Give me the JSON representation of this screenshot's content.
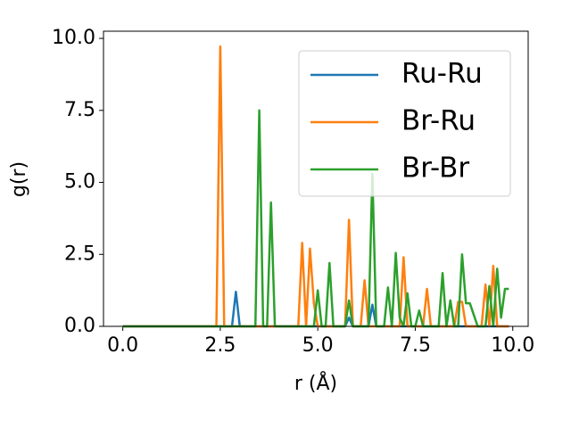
{
  "chart_data": {
    "type": "line",
    "xlabel": "r (Å)",
    "ylabel": "g(r)",
    "x": [
      0,
      0.1,
      0.2,
      0.3,
      0.4,
      0.5,
      0.6,
      0.7,
      0.8,
      0.9,
      1,
      1.1,
      1.2,
      1.3,
      1.4,
      1.5,
      1.6,
      1.7,
      1.8,
      1.9,
      2,
      2.1,
      2.2,
      2.3,
      2.4,
      2.5,
      2.6,
      2.7,
      2.8,
      2.9,
      3,
      3.1,
      3.2,
      3.3,
      3.4,
      3.5,
      3.6,
      3.7,
      3.8,
      3.9,
      4,
      4.1,
      4.2,
      4.3,
      4.4,
      4.5,
      4.6,
      4.7,
      4.8,
      4.9,
      5,
      5.1,
      5.2,
      5.3,
      5.4,
      5.5,
      5.6,
      5.7,
      5.8,
      5.9,
      6,
      6.1,
      6.2,
      6.3,
      6.4,
      6.5,
      6.6,
      6.7,
      6.8,
      6.9,
      7,
      7.1,
      7.2,
      7.3,
      7.4,
      7.5,
      7.6,
      7.7,
      7.8,
      7.9,
      8,
      8.1,
      8.2,
      8.3,
      8.4,
      8.5,
      8.6,
      8.7,
      8.8,
      8.9,
      9,
      9.1,
      9.2,
      9.3,
      9.4,
      9.5,
      9.6,
      9.7,
      9.8,
      9.9
    ],
    "series": [
      {
        "name": "Ru-Ru",
        "color": "#1f77b4",
        "values": [
          0,
          0,
          0,
          0,
          0,
          0,
          0,
          0,
          0,
          0,
          0,
          0,
          0,
          0,
          0,
          0,
          0,
          0,
          0,
          0,
          0,
          0,
          0,
          0,
          0,
          0,
          0,
          0,
          0,
          1.2,
          0,
          0,
          0,
          0,
          0,
          0,
          0,
          0,
          0,
          0,
          0,
          0,
          0,
          0,
          0,
          0,
          0,
          0,
          0,
          0,
          0,
          0,
          0,
          0,
          0,
          0,
          0,
          0,
          0.3,
          0,
          0,
          0,
          0,
          0,
          0.75,
          0,
          0,
          0,
          0,
          0,
          0,
          0,
          0,
          0,
          0,
          0,
          0,
          0,
          0,
          0,
          0,
          0,
          0,
          0,
          0,
          0,
          0,
          0,
          0,
          0,
          0,
          0,
          0,
          0,
          0,
          0,
          0,
          0,
          0,
          0
        ]
      },
      {
        "name": "Br-Ru",
        "color": "#ff7f0e",
        "values": [
          0,
          0,
          0,
          0,
          0,
          0,
          0,
          0,
          0,
          0,
          0,
          0,
          0,
          0,
          0,
          0,
          0,
          0,
          0,
          0,
          0,
          0,
          0,
          0,
          0,
          9.72,
          0,
          0,
          0,
          0,
          0,
          0,
          0,
          0,
          0,
          0,
          0,
          0,
          0,
          0,
          0,
          0,
          0,
          0,
          0,
          0,
          2.9,
          0,
          2.7,
          0.8,
          0,
          0,
          0,
          0,
          0,
          0,
          0,
          0,
          3.7,
          0,
          0,
          0,
          1.6,
          0,
          0,
          0,
          0,
          0,
          0,
          0,
          0,
          0,
          2.4,
          0,
          0,
          0,
          0,
          0,
          1.3,
          0,
          0,
          0,
          0,
          0,
          0,
          0,
          0.85,
          0.85,
          0,
          0,
          0,
          0,
          0,
          1.45,
          0,
          2.1,
          0,
          0,
          0,
          0
        ]
      },
      {
        "name": "Br-Br",
        "color": "#2ca02c",
        "values": [
          0,
          0,
          0,
          0,
          0,
          0,
          0,
          0,
          0,
          0,
          0,
          0,
          0,
          0,
          0,
          0,
          0,
          0,
          0,
          0,
          0,
          0,
          0,
          0,
          0,
          0,
          0,
          0,
          0,
          0,
          0,
          0,
          0,
          0,
          0,
          7.5,
          0,
          0,
          4.3,
          0,
          0,
          0,
          0,
          0,
          0,
          0,
          0,
          0,
          0,
          0,
          1.25,
          0,
          0,
          2.2,
          0,
          0,
          0,
          0,
          0.9,
          0,
          0,
          0,
          0,
          0,
          5.3,
          0,
          0,
          0,
          1.35,
          0,
          2.55,
          0.3,
          0,
          1.15,
          0,
          0,
          0.55,
          0,
          0,
          0,
          0,
          0,
          1.85,
          0,
          0.9,
          0,
          0,
          2.5,
          0.8,
          0.8,
          0.4,
          0,
          0,
          0,
          1.4,
          0,
          2.0,
          0.3,
          1.3,
          1.3
        ]
      }
    ],
    "xlim": [
      -0.495,
      10.395
    ],
    "ylim": [
      0,
      10.25
    ],
    "xticks": [
      {
        "value": 0,
        "label": "0.0"
      },
      {
        "value": 2.5,
        "label": "2.5"
      },
      {
        "value": 5,
        "label": "5.0"
      },
      {
        "value": 7.5,
        "label": "7.5"
      },
      {
        "value": 10,
        "label": "10.0"
      }
    ],
    "yticks": [
      {
        "value": 0,
        "label": "0.0"
      },
      {
        "value": 2.5,
        "label": "2.5"
      },
      {
        "value": 5,
        "label": "5.0"
      },
      {
        "value": 7.5,
        "label": "7.5"
      },
      {
        "value": 10,
        "label": "10.0"
      }
    ],
    "grid": false,
    "legend": "upper right"
  }
}
